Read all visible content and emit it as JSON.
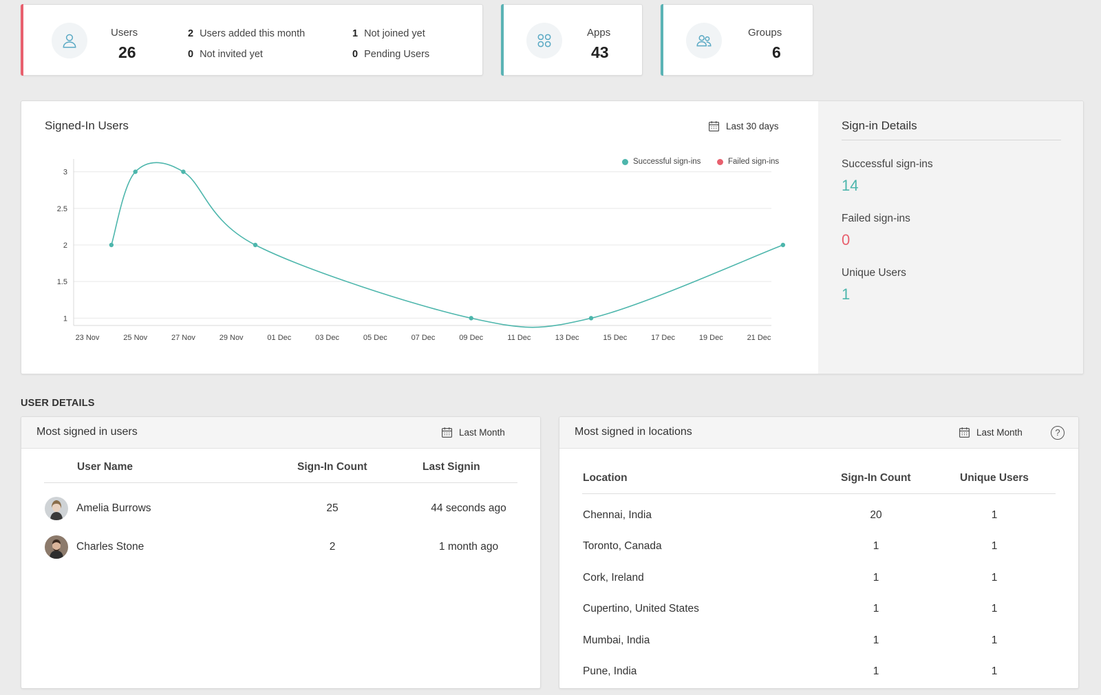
{
  "stats": {
    "users": {
      "label": "Users",
      "value": "26",
      "accent": "#e8606e",
      "icon": "user-icon",
      "details": [
        {
          "count": "2",
          "label": "Users added this month"
        },
        {
          "count": "0",
          "label": "Not invited yet"
        },
        {
          "count": "1",
          "label": "Not joined yet"
        },
        {
          "count": "0",
          "label": "Pending Users"
        }
      ]
    },
    "apps": {
      "label": "Apps",
      "value": "43",
      "accent": "#5ab3b5",
      "icon": "apps-grid-icon"
    },
    "groups": {
      "label": "Groups",
      "value": "6",
      "accent": "#5ab3b5",
      "icon": "group-icon"
    }
  },
  "signed_in_chart": {
    "title": "Signed-In Users",
    "range_label": "Last 30 days",
    "legend": {
      "successful": "Successful sign-ins",
      "failed": "Failed sign-ins"
    }
  },
  "chart_data": {
    "type": "line",
    "title": "Signed-In Users",
    "x_ticks": [
      "23 Nov",
      "25 Nov",
      "27 Nov",
      "29 Nov",
      "01 Dec",
      "03 Dec",
      "05 Dec",
      "07 Dec",
      "09 Dec",
      "11 Dec",
      "13 Dec",
      "15 Dec",
      "17 Dec",
      "19 Dec",
      "21 Dec"
    ],
    "y_ticks": [
      1,
      1.5,
      2,
      2.5,
      3
    ],
    "ylim": [
      0.9,
      3.1
    ],
    "series": [
      {
        "name": "Successful sign-ins",
        "color": "#4db6ac",
        "points": [
          {
            "x": "24 Nov",
            "y": 2
          },
          {
            "x": "25 Nov",
            "y": 3
          },
          {
            "x": "27 Nov",
            "y": 3
          },
          {
            "x": "30 Nov",
            "y": 2
          },
          {
            "x": "09 Dec",
            "y": 1
          },
          {
            "x": "14 Dec",
            "y": 1
          },
          {
            "x": "22 Dec",
            "y": 2
          }
        ]
      },
      {
        "name": "Failed sign-ins",
        "color": "#e8606e",
        "points": []
      }
    ],
    "grid": true,
    "legend_position": "top-right"
  },
  "signin_details": {
    "title": "Sign-in Details",
    "successful_label": "Successful sign-ins",
    "successful_value": "14",
    "failed_label": "Failed sign-ins",
    "failed_value": "0",
    "unique_label": "Unique Users",
    "unique_value": "1"
  },
  "user_details_heading": "USER DETAILS",
  "most_signed_users": {
    "title": "Most signed in users",
    "range_label": "Last Month",
    "columns": [
      "User Name",
      "Sign-In Count",
      "Last Signin"
    ],
    "rows": [
      {
        "name": "Amelia Burrows",
        "count": "25",
        "last": "44 seconds ago"
      },
      {
        "name": "Charles Stone",
        "count": "2",
        "last": "1 month ago"
      }
    ]
  },
  "most_signed_locations": {
    "title": "Most signed in locations",
    "range_label": "Last Month",
    "columns": [
      "Location",
      "Sign-In Count",
      "Unique Users"
    ],
    "rows": [
      {
        "location": "Chennai, India",
        "count": "20",
        "unique": "1"
      },
      {
        "location": "Toronto, Canada",
        "count": "1",
        "unique": "1"
      },
      {
        "location": "Cork, Ireland",
        "count": "1",
        "unique": "1"
      },
      {
        "location": "Cupertino, United States",
        "count": "1",
        "unique": "1"
      },
      {
        "location": "Mumbai, India",
        "count": "1",
        "unique": "1"
      },
      {
        "location": "Pune, India",
        "count": "1",
        "unique": "1"
      }
    ]
  },
  "colors": {
    "teal": "#4db6ac",
    "red": "#e8606e"
  }
}
